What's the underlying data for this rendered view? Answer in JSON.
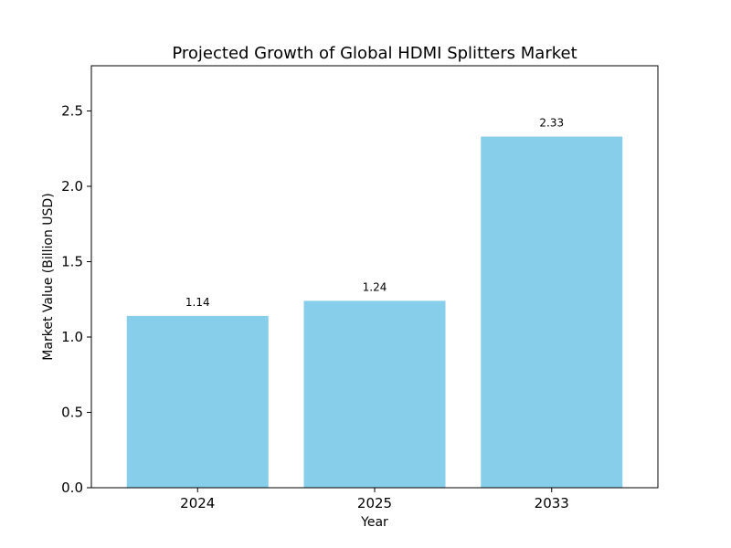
{
  "chart_data": {
    "type": "bar",
    "title": "Projected Growth of Global HDMI Splitters Market",
    "xlabel": "Year",
    "ylabel": "Market Value (Billion USD)",
    "categories": [
      "2024",
      "2025",
      "2033"
    ],
    "values": [
      1.14,
      1.24,
      2.33
    ],
    "data_labels": [
      "1.14",
      "1.24",
      "2.33"
    ],
    "ylim": [
      0,
      2.8
    ],
    "yticks": [
      0.0,
      0.5,
      1.0,
      1.5,
      2.0,
      2.5
    ],
    "ytick_labels": [
      "0.0",
      "0.5",
      "1.0",
      "1.5",
      "2.0",
      "2.5"
    ],
    "bar_color": "#87CEEB",
    "grid": false,
    "legend": false
  }
}
